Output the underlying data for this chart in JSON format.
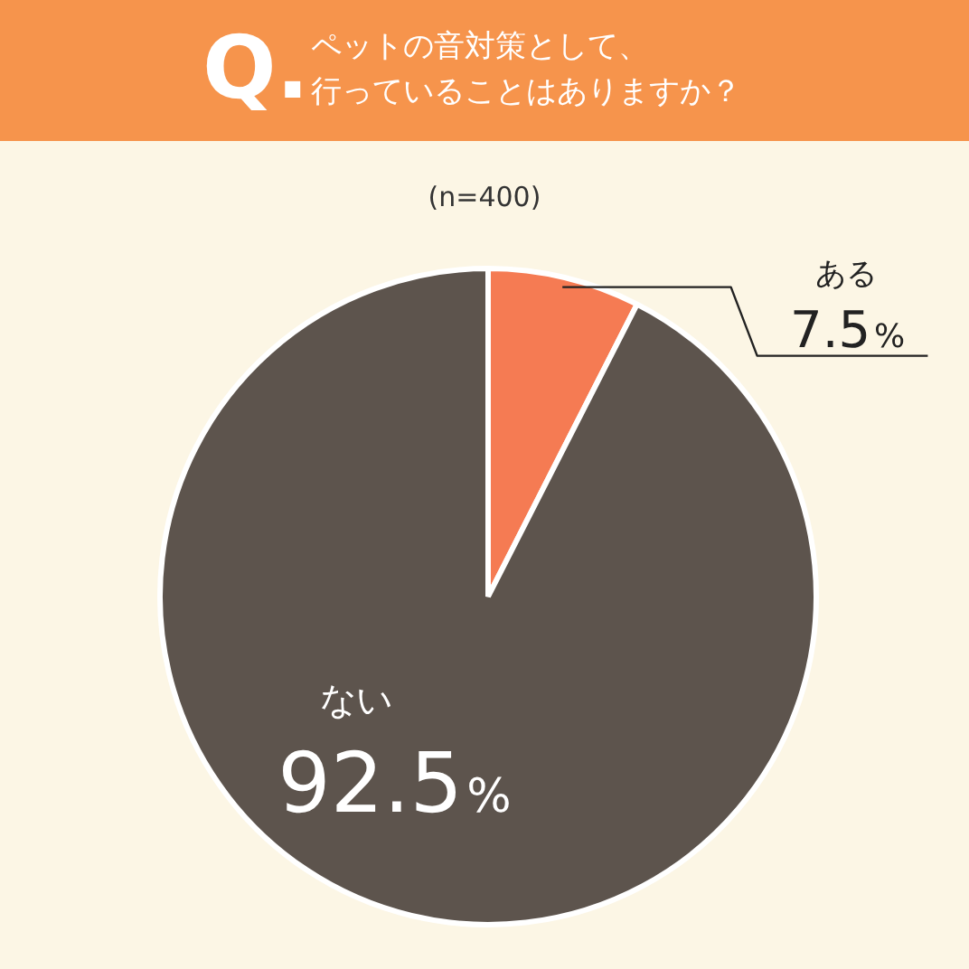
{
  "chart_data": {
    "type": "pie",
    "title": "ペットの音対策として、",
    "subtitle": "行っていることはありますか？",
    "annotations": [
      "Q.",
      "(n=400)"
    ],
    "categories": [
      "ある",
      "ない"
    ],
    "values": [
      7.5,
      92.5
    ],
    "colors": [
      "#f57b53",
      "#5d544d"
    ],
    "value_labels": [
      "7.5%",
      "92.5%"
    ]
  }
}
